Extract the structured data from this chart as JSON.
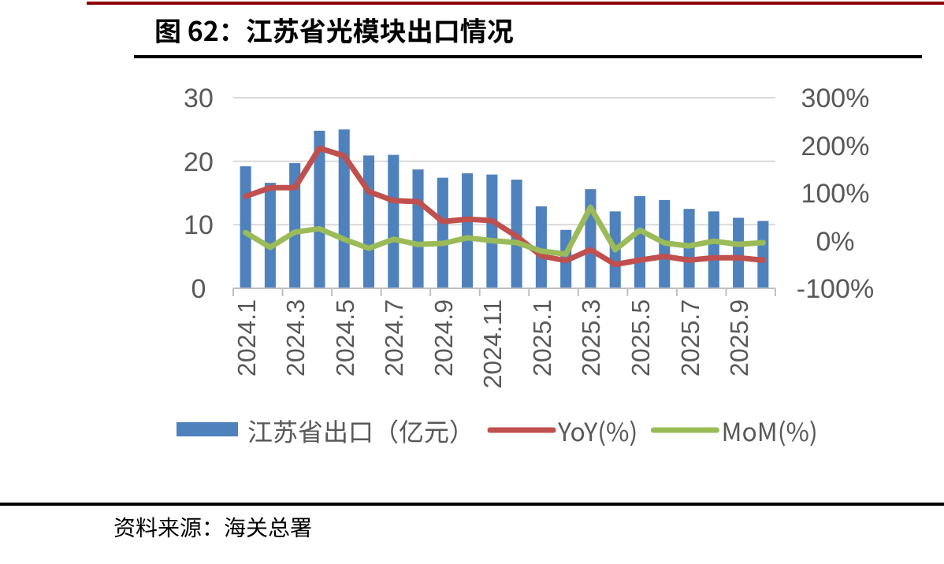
{
  "chart_data": {
    "type": "bar",
    "title": "图 62：江苏省光模块出口情况",
    "categories": [
      "2024.1",
      null,
      "2024.3",
      null,
      "2024.5",
      null,
      "2024.7",
      null,
      "2024.9",
      null,
      "2024.11",
      null,
      "2025.1",
      null,
      "2025.3",
      null,
      "2025.5",
      null,
      "2025.7",
      null,
      "2025.9",
      null
    ],
    "series": [
      {
        "name": "江苏省出口（亿元）",
        "color": "#4f81bd",
        "values": [
          19.2,
          16.6,
          19.7,
          24.8,
          25.0,
          20.9,
          21.0,
          18.7,
          17.4,
          18.1,
          17.9,
          17.1,
          12.9,
          9.2,
          15.6,
          12.1,
          14.5,
          13.9,
          12.5,
          12.1,
          11.1,
          10.6
        ]
      },
      {
        "name": "YoY(%)",
        "type": "line",
        "axis": "y2",
        "color": "#c0504d",
        "values": [
          93,
          111,
          111,
          194,
          178,
          103,
          84,
          82,
          40,
          45,
          42,
          9,
          -32,
          -42,
          -19,
          -50,
          -41,
          -33,
          -41,
          -36,
          -36,
          -41
        ]
      },
      {
        "name": "MoM(%)",
        "type": "line",
        "axis": "y2",
        "color": "#9bbb59",
        "values": [
          17,
          -14,
          18,
          25,
          3,
          -16,
          3,
          -8,
          -6,
          6,
          0,
          -4,
          -22,
          -28,
          70,
          -19,
          22,
          -5,
          -11,
          -1,
          -8,
          -4
        ]
      }
    ],
    "ylim": [
      0,
      30
    ],
    "yticks": [
      0,
      10,
      20,
      30
    ],
    "y2lim": [
      -100,
      300
    ],
    "y2ticks": [
      {
        "value": -100,
        "label": "-100%"
      },
      {
        "value": 0,
        "label": "0%"
      },
      {
        "value": 100,
        "label": "100%"
      },
      {
        "value": 200,
        "label": "200%"
      },
      {
        "value": 300,
        "label": "300%"
      }
    ],
    "grid": "y",
    "legend": "bottom",
    "annotations": [
      "资料来源：海关总署"
    ]
  }
}
